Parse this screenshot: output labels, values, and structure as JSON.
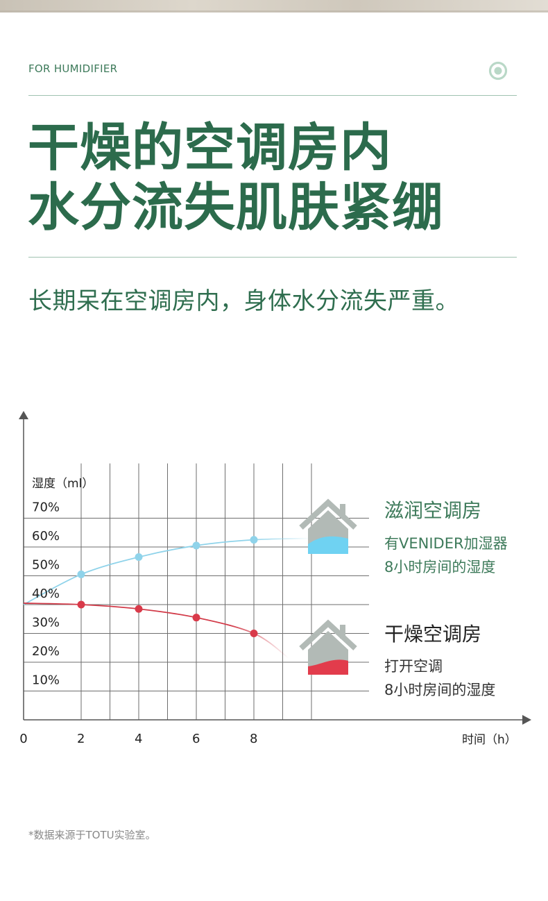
{
  "header": {
    "brand_tag": "FOR HUMIDIFIER",
    "headline_lines": [
      "干燥的空调房内",
      "水分流失肌肤紧绷"
    ],
    "subline": "长期呆在空调房内，身体水分流失严重。"
  },
  "chart_data": {
    "type": "line",
    "ylabel": "湿度（ml）",
    "xlabel": "时间（h）",
    "x_ticks": [
      "0",
      "2",
      "4",
      "6",
      "8"
    ],
    "y_ticks": [
      "10%",
      "20%",
      "30%",
      "40%",
      "50%",
      "60%",
      "70%"
    ],
    "xlim": [
      0,
      10
    ],
    "ylim": [
      0,
      80
    ],
    "grid": true,
    "series": [
      {
        "name": "滋润空调房",
        "color": "#8fd3ea",
        "marker_color": "#8fd3ea",
        "x": [
          0,
          2,
          4,
          6,
          8,
          10
        ],
        "y": [
          40,
          50.5,
          56.5,
          60.5,
          62.5,
          63
        ],
        "markers_x": [
          2,
          4,
          6,
          8
        ]
      },
      {
        "name": "干燥空调房",
        "color": "#d23a48",
        "marker_color": "#d93a4a",
        "x": [
          0,
          2,
          4,
          6,
          8,
          9.2
        ],
        "y": [
          40.5,
          40,
          38.5,
          35.5,
          30,
          21.5
        ],
        "markers_x": [
          2,
          4,
          6,
          8
        ]
      }
    ]
  },
  "legend": {
    "moist": {
      "title": "滋润空调房",
      "lines": [
        "有VENIDER加湿器",
        "8小时房间的湿度"
      ],
      "icon": "house-icon",
      "fill_color": "#6fd2f2"
    },
    "dry": {
      "title": "干燥空调房",
      "lines": [
        "打开空调",
        "8小时房间的湿度"
      ],
      "icon": "house-icon",
      "fill_color": "#e23c4c"
    }
  },
  "footnote": "*数据来源于TOTU实验室。"
}
